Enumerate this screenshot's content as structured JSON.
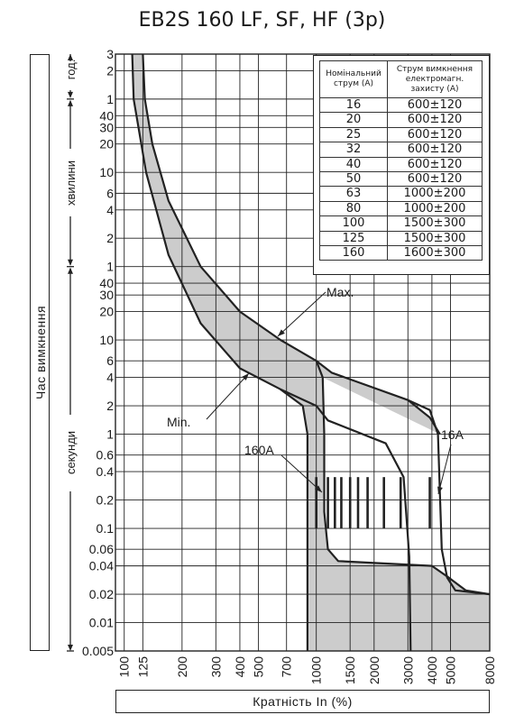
{
  "title": "EB2S 160 LF, SF, HF (3p)",
  "y_axis_label": "Час вимкнення",
  "x_axis_label": "Кратність In (%)",
  "unit_labels": {
    "hours": "год.",
    "minutes": "хвилини",
    "seconds": "секунди"
  },
  "annotations": {
    "max": "Max.",
    "min": "Min.",
    "a160": "160A",
    "a16": "16A"
  },
  "rating_table": {
    "header_rated": "Номінальний струм (А)",
    "header_trip": "Струм вимкнення електромагн. захисту (А)",
    "rows": [
      {
        "rated": "16",
        "trip": "600±120"
      },
      {
        "rated": "20",
        "trip": "600±120"
      },
      {
        "rated": "25",
        "trip": "600±120"
      },
      {
        "rated": "32",
        "trip": "600±120"
      },
      {
        "rated": "40",
        "trip": "600±120"
      },
      {
        "rated": "50",
        "trip": "600±120"
      },
      {
        "rated": "63",
        "trip": "1000±200"
      },
      {
        "rated": "80",
        "trip": "1000±200"
      },
      {
        "rated": "100",
        "trip": "1500±300"
      },
      {
        "rated": "125",
        "trip": "1500±300"
      },
      {
        "rated": "160",
        "trip": "1600±300"
      }
    ]
  },
  "chart_data": {
    "type": "line",
    "xscale": "log",
    "yscale": "log",
    "xlabel": "Кратність In (%)",
    "ylabel": "Час вимкнення",
    "x_ticks": [
      "100",
      "125",
      "200",
      "300",
      "400",
      "500",
      "700",
      "1000",
      "1500",
      "2000",
      "3000",
      "4000",
      "5000",
      "8000"
    ],
    "y_ticks": [
      {
        "label": "0.005",
        "seconds": 0.005
      },
      {
        "label": "0.01",
        "seconds": 0.01
      },
      {
        "label": "0.02",
        "seconds": 0.02
      },
      {
        "label": "0.04",
        "seconds": 0.04
      },
      {
        "label": "0.06",
        "seconds": 0.06
      },
      {
        "label": "0.1",
        "seconds": 0.1
      },
      {
        "label": "0.2",
        "seconds": 0.2
      },
      {
        "label": "0.4",
        "seconds": 0.4
      },
      {
        "label": "0.6",
        "seconds": 0.6
      },
      {
        "label": "1",
        "seconds": 1
      },
      {
        "label": "2",
        "seconds": 2
      },
      {
        "label": "4",
        "seconds": 4
      },
      {
        "label": "6",
        "seconds": 6
      },
      {
        "label": "10",
        "seconds": 10
      },
      {
        "label": "20",
        "seconds": 20
      },
      {
        "label": "30",
        "seconds": 30
      },
      {
        "label": "40",
        "seconds": 40
      },
      {
        "label": "1",
        "seconds": 60
      },
      {
        "label": "2",
        "seconds": 120
      },
      {
        "label": "4",
        "seconds": 240
      },
      {
        "label": "6",
        "seconds": 360
      },
      {
        "label": "10",
        "seconds": 600
      },
      {
        "label": "20",
        "seconds": 1200
      },
      {
        "label": "30",
        "seconds": 1800
      },
      {
        "label": "40",
        "seconds": 2400
      },
      {
        "label": "1",
        "seconds": 3600
      },
      {
        "label": "2",
        "seconds": 7200
      },
      {
        "label": "3",
        "seconds": 10800
      }
    ],
    "xlim": [
      90,
      8000
    ],
    "ylim": [
      0.005,
      10800
    ],
    "grid": true,
    "series": [
      {
        "name": "Max.",
        "points": [
          [
            125,
            10800
          ],
          [
            128,
            3600
          ],
          [
            140,
            1200
          ],
          [
            170,
            300
          ],
          [
            250,
            60
          ],
          [
            400,
            20
          ],
          [
            650,
            10
          ],
          [
            1000,
            6
          ],
          [
            1200,
            4.5
          ],
          [
            3000,
            2.3
          ],
          [
            3900,
            1.5
          ],
          [
            4400,
            1.0
          ]
        ]
      },
      {
        "name": "Min.",
        "points": [
          [
            110,
            10800
          ],
          [
            112,
            3600
          ],
          [
            130,
            600
          ],
          [
            170,
            80
          ],
          [
            250,
            15
          ],
          [
            400,
            5
          ],
          [
            650,
            3
          ],
          [
            1000,
            2
          ],
          [
            1150,
            1.4
          ],
          [
            2300,
            0.8
          ],
          [
            2850,
            0.35
          ],
          [
            3050,
            0.05
          ],
          [
            3100,
            0.005
          ]
        ]
      },
      {
        "name": "Max. (160A)",
        "points": [
          [
            1000,
            6
          ],
          [
            1080,
            4
          ],
          [
            1100,
            1.0
          ],
          [
            1100,
            0.15
          ],
          [
            1150,
            0.06
          ],
          [
            1300,
            0.045
          ],
          [
            4000,
            0.04
          ],
          [
            4900,
            0.03
          ],
          [
            6000,
            0.022
          ],
          [
            8000,
            0.02
          ]
        ]
      },
      {
        "name": "Min. (160A)",
        "points": [
          [
            650,
            3
          ],
          [
            850,
            2
          ],
          [
            900,
            1.0
          ],
          [
            900,
            0.005
          ]
        ]
      },
      {
        "name": "16A",
        "points": [
          [
            3000,
            2.3
          ],
          [
            3900,
            1.8
          ],
          [
            4300,
            1.0
          ],
          [
            4500,
            0.06
          ],
          [
            4800,
            0.03
          ],
          [
            5300,
            0.022
          ],
          [
            8000,
            0.02
          ]
        ]
      }
    ],
    "magnetic_markers_pct": [
      1000,
      1150,
      1250,
      1350,
      1500,
      1650,
      1850,
      2250,
      2750,
      3900
    ]
  }
}
